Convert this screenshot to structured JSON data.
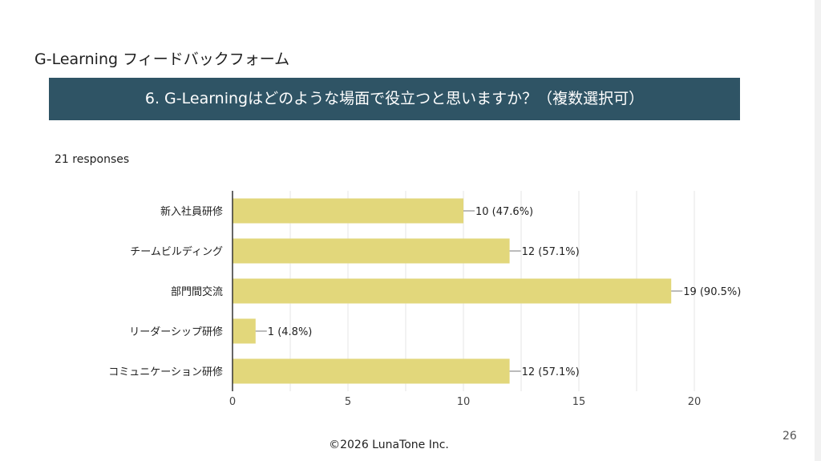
{
  "slide": {
    "form_title": "G-Learning フィードバックフォーム",
    "question": "6. G-Learningはどのような場面で役立つと思いますか？（複数選択可）",
    "responses": "21 responses",
    "page_number": "26",
    "footer": "©2026 LunaTone Inc."
  },
  "colors": {
    "banner": "#2f5465",
    "bar": "#e2d77b",
    "grid": "#e6e6e6",
    "axis": "#333333"
  },
  "chart_data": {
    "type": "bar",
    "orientation": "horizontal",
    "categories": [
      "新入社員研修",
      "チームビルディング",
      "部門間交流",
      "リーダーシップ研修",
      "コミュニケーション研修"
    ],
    "values": [
      10,
      12,
      19,
      1,
      12
    ],
    "labels": [
      "10 (47.6%)",
      "12 (57.1%)",
      "19 (90.5%)",
      "1 (4.8%)",
      "12 (57.1%)"
    ],
    "xlim": [
      0,
      20
    ],
    "xticks": [
      0,
      5,
      10,
      15,
      20
    ],
    "xtick_labels": [
      "0",
      "5",
      "10",
      "15",
      "20"
    ],
    "grid": true
  }
}
